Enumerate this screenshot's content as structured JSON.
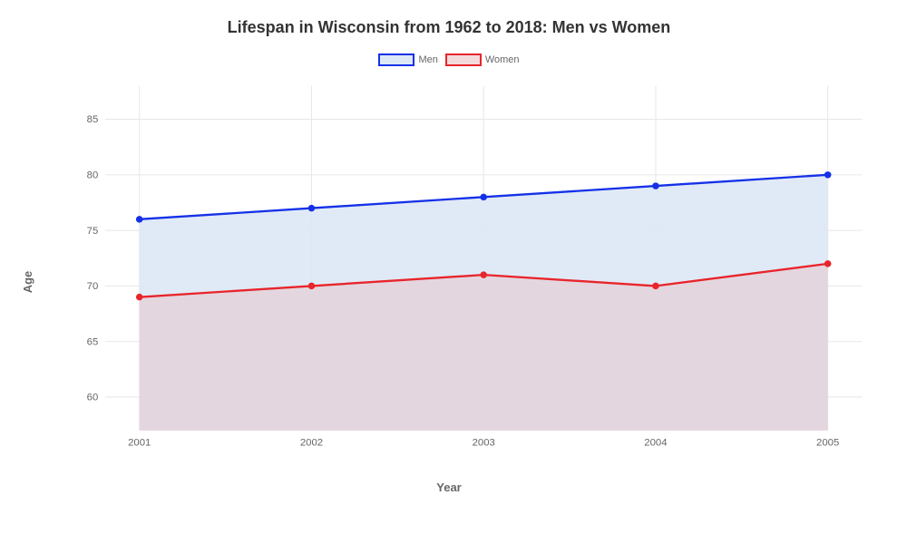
{
  "chart": {
    "type": "line-area",
    "title": "Lifespan in Wisconsin from 1962 to 2018: Men vs Women",
    "title_fontsize": 18,
    "title_color": "#333333",
    "background_color": "#ffffff",
    "grid_color": "#e6e6e6",
    "axis_label_color": "#666666",
    "tick_label_color": "#666666",
    "tick_fontsize": 12,
    "axis_label_fontsize": 13,
    "x_axis": {
      "label": "Year",
      "categories": [
        "2001",
        "2002",
        "2003",
        "2004",
        "2005"
      ]
    },
    "y_axis": {
      "label": "Age",
      "min": 57,
      "max": 88,
      "ticks": [
        60,
        65,
        70,
        75,
        80,
        85
      ]
    },
    "series": [
      {
        "name": "Men",
        "values": [
          76,
          77,
          78,
          79,
          80
        ],
        "line_color": "#1531e8",
        "fill_color": "#dde8f6",
        "fill_opacity": 0.9,
        "line_width": 2.5,
        "marker_radius": 4,
        "marker_fill": "#1531e8"
      },
      {
        "name": "Women",
        "values": [
          69,
          70,
          71,
          70,
          72
        ],
        "line_color": "#e8252b",
        "fill_color": "#e4d2da",
        "fill_opacity": 0.85,
        "line_width": 2.5,
        "marker_radius": 4,
        "marker_fill": "#e8252b"
      }
    ],
    "legend": {
      "position": "top-center",
      "items": [
        {
          "label": "Men",
          "swatch_fill": "#dde8f6",
          "swatch_border": "#1531e8"
        },
        {
          "label": "Women",
          "swatch_fill": "#f3dadb",
          "swatch_border": "#e8252b"
        }
      ],
      "label_fontsize": 11,
      "label_color": "#666666",
      "swatch_width": 40,
      "swatch_height": 14
    }
  }
}
